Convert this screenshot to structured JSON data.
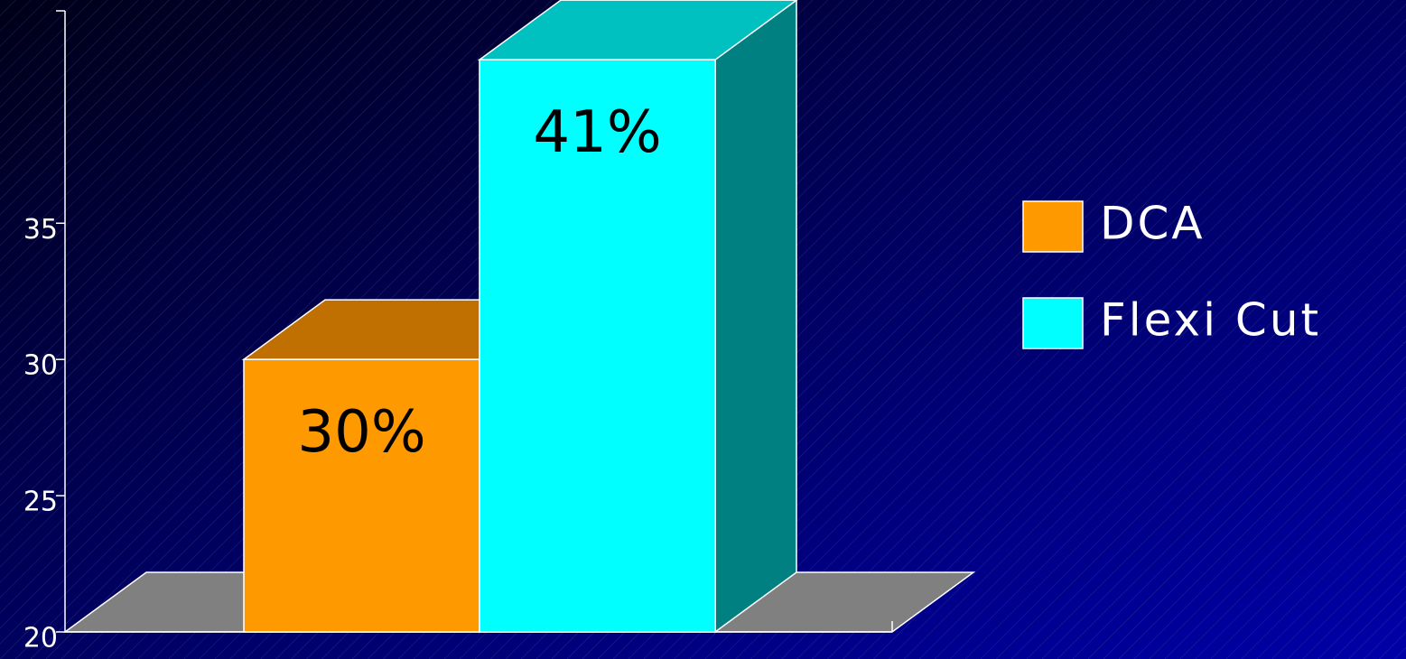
{
  "chart_data": {
    "type": "bar3d",
    "series": [
      {
        "name": "DCA",
        "color": "#ff9900",
        "top_color": "#c07000",
        "side_color": "#a05c00",
        "values": [
          30
        ],
        "value_labels": [
          "30%"
        ]
      },
      {
        "name": "Flexi Cut",
        "color": "#00ffff",
        "top_color": "#00c0c0",
        "side_color": "#008080",
        "values": [
          41
        ],
        "value_labels": [
          "41%"
        ]
      }
    ],
    "ylim": [
      20,
      42
    ],
    "yticks": [
      20,
      25,
      30,
      35
    ],
    "floor_color": "#808080",
    "legend": "right"
  }
}
